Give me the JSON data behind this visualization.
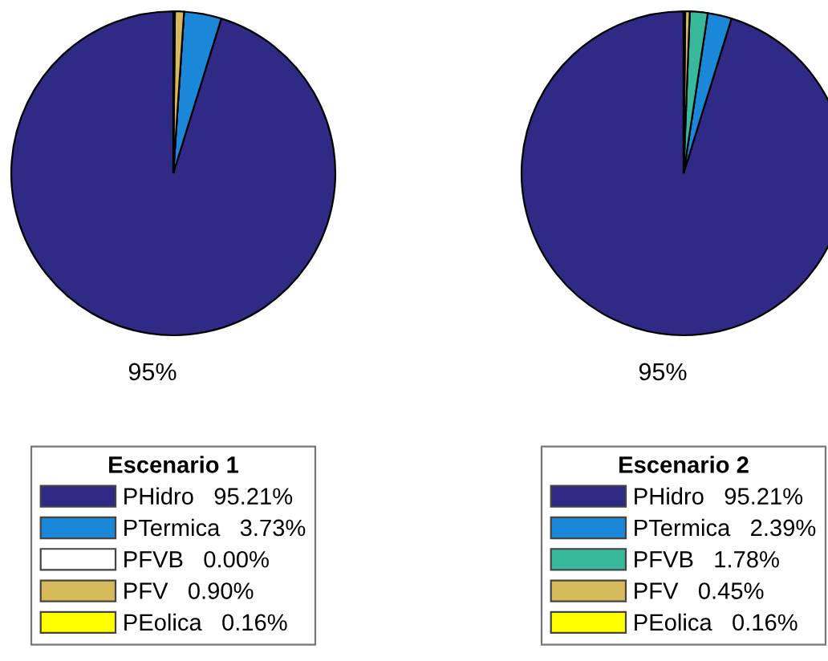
{
  "chart_data": [
    {
      "type": "pie",
      "categories": [
        "PHidro",
        "PTermica",
        "PFVB",
        "PFV",
        "PEolica"
      ],
      "values": [
        95.21,
        3.73,
        0.0,
        0.9,
        0.16
      ],
      "colors": [
        "#2e2a85",
        "#1a87d8",
        "#ffffff",
        "#d6b95a",
        "#ffff00"
      ],
      "value_labels": [
        "95.21%",
        "3.73%",
        "0.00%",
        "0.90%",
        "0.16%"
      ],
      "legend_title": "Escenario 1",
      "legend": "bottom",
      "annotations": [
        "95%"
      ]
    },
    {
      "type": "pie",
      "categories": [
        "PHidro",
        "PTermica",
        "PFVB",
        "PFV",
        "PEolica"
      ],
      "values": [
        95.21,
        2.39,
        1.78,
        0.45,
        0.16
      ],
      "colors": [
        "#2e2a85",
        "#1a87d8",
        "#38b99c",
        "#d6b95a",
        "#ffff00"
      ],
      "value_labels": [
        "95.21%",
        "2.39%",
        "1.78%",
        "0.45%",
        "0.16%"
      ],
      "legend_title": "Escenario 2",
      "legend": "bottom",
      "annotations": [
        "95%"
      ]
    }
  ]
}
